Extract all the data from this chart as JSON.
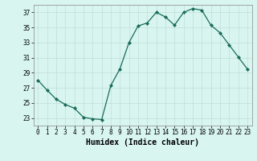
{
  "x": [
    0,
    1,
    2,
    3,
    4,
    5,
    6,
    7,
    8,
    9,
    10,
    11,
    12,
    13,
    14,
    15,
    16,
    17,
    18,
    19,
    20,
    21,
    22,
    23
  ],
  "y": [
    28.0,
    26.7,
    25.5,
    24.8,
    24.3,
    23.1,
    22.9,
    22.8,
    27.3,
    29.5,
    33.0,
    35.2,
    35.6,
    37.0,
    36.4,
    35.3,
    37.0,
    37.5,
    37.3,
    35.3,
    34.3,
    32.7,
    31.1,
    29.5
  ],
  "line_color": "#1a6b5a",
  "marker": "D",
  "marker_size": 2.0,
  "bg_color": "#d8f5f0",
  "grid_color": "#c0ddd8",
  "xlabel": "Humidex (Indice chaleur)",
  "ylim": [
    22,
    38
  ],
  "xlim": [
    -0.5,
    23.5
  ],
  "yticks": [
    23,
    25,
    27,
    29,
    31,
    33,
    35,
    37
  ],
  "xticks": [
    0,
    1,
    2,
    3,
    4,
    5,
    6,
    7,
    8,
    9,
    10,
    11,
    12,
    13,
    14,
    15,
    16,
    17,
    18,
    19,
    20,
    21,
    22,
    23
  ],
  "tick_label_fontsize": 5.5,
  "xlabel_fontsize": 7.0,
  "line_width": 0.9
}
